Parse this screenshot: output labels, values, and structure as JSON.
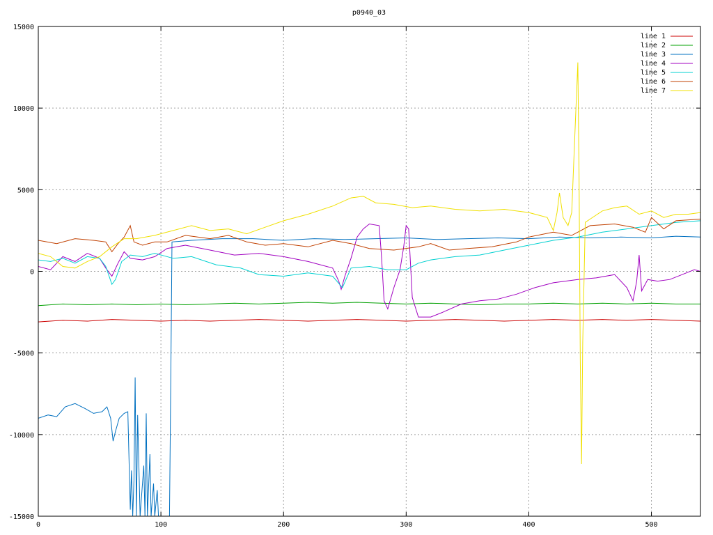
{
  "chart_data": {
    "type": "line",
    "title": "p0940_03",
    "xlabel": "",
    "ylabel": "",
    "xlim": [
      0,
      540
    ],
    "ylim": [
      -15000,
      15000
    ],
    "x_ticks": [
      0,
      100,
      200,
      300,
      400,
      500
    ],
    "y_ticks": [
      -15000,
      -10000,
      -5000,
      0,
      5000,
      10000,
      15000
    ],
    "grid": true,
    "legend_position": "top-right",
    "series": [
      {
        "name": "line 1",
        "color": "#cc0000",
        "points": [
          [
            0,
            -3100
          ],
          [
            20,
            -3000
          ],
          [
            40,
            -3050
          ],
          [
            60,
            -2950
          ],
          [
            80,
            -3000
          ],
          [
            100,
            -3050
          ],
          [
            120,
            -3000
          ],
          [
            140,
            -3050
          ],
          [
            160,
            -3000
          ],
          [
            180,
            -2950
          ],
          [
            200,
            -3000
          ],
          [
            220,
            -3050
          ],
          [
            240,
            -3000
          ],
          [
            260,
            -2950
          ],
          [
            280,
            -3000
          ],
          [
            300,
            -3050
          ],
          [
            320,
            -3000
          ],
          [
            340,
            -2950
          ],
          [
            360,
            -3000
          ],
          [
            380,
            -3050
          ],
          [
            400,
            -3000
          ],
          [
            420,
            -2950
          ],
          [
            440,
            -3000
          ],
          [
            460,
            -2950
          ],
          [
            480,
            -3000
          ],
          [
            500,
            -2950
          ],
          [
            520,
            -3000
          ],
          [
            540,
            -3050
          ]
        ]
      },
      {
        "name": "line 2",
        "color": "#00a000",
        "points": [
          [
            0,
            -2100
          ],
          [
            20,
            -2000
          ],
          [
            40,
            -2050
          ],
          [
            60,
            -2000
          ],
          [
            80,
            -2050
          ],
          [
            100,
            -2000
          ],
          [
            120,
            -2050
          ],
          [
            140,
            -2000
          ],
          [
            160,
            -1950
          ],
          [
            180,
            -2000
          ],
          [
            200,
            -1950
          ],
          [
            220,
            -1900
          ],
          [
            240,
            -1950
          ],
          [
            260,
            -1900
          ],
          [
            280,
            -1950
          ],
          [
            300,
            -2000
          ],
          [
            320,
            -1950
          ],
          [
            340,
            -2000
          ],
          [
            360,
            -2050
          ],
          [
            380,
            -2000
          ],
          [
            400,
            -2000
          ],
          [
            420,
            -1950
          ],
          [
            440,
            -2000
          ],
          [
            460,
            -1950
          ],
          [
            480,
            -2000
          ],
          [
            500,
            -1950
          ],
          [
            520,
            -2000
          ],
          [
            540,
            -2000
          ]
        ]
      },
      {
        "name": "line 3",
        "color": "#0070c0",
        "points": [
          [
            0,
            -9000
          ],
          [
            8,
            -8800
          ],
          [
            15,
            -8900
          ],
          [
            22,
            -8300
          ],
          [
            30,
            -8100
          ],
          [
            38,
            -8400
          ],
          [
            45,
            -8700
          ],
          [
            52,
            -8600
          ],
          [
            56,
            -8300
          ],
          [
            59,
            -9000
          ],
          [
            61,
            -10400
          ],
          [
            63,
            -9800
          ],
          [
            66,
            -9000
          ],
          [
            70,
            -8700
          ],
          [
            73,
            -8600
          ],
          [
            75,
            -14600
          ],
          [
            76,
            -12200
          ],
          [
            77,
            -15000
          ],
          [
            78,
            -12800
          ],
          [
            79,
            -6500
          ],
          [
            80,
            -15000
          ],
          [
            81,
            -8800
          ],
          [
            82,
            -11800
          ],
          [
            83,
            -15000
          ],
          [
            86,
            -11900
          ],
          [
            87,
            -15000
          ],
          [
            88,
            -8700
          ],
          [
            89,
            -15000
          ],
          [
            91,
            -11200
          ],
          [
            92,
            -15000
          ],
          [
            94,
            -13000
          ],
          [
            95,
            -15000
          ],
          [
            97,
            -13400
          ],
          [
            98,
            -15000
          ],
          [
            107,
            -15000
          ],
          [
            108,
            -7100
          ],
          [
            109,
            1800
          ],
          [
            125,
            1900
          ],
          [
            150,
            2000
          ],
          [
            175,
            2000
          ],
          [
            200,
            1900
          ],
          [
            225,
            2000
          ],
          [
            250,
            1950
          ],
          [
            275,
            2000
          ],
          [
            300,
            2050
          ],
          [
            325,
            1950
          ],
          [
            350,
            2000
          ],
          [
            375,
            2050
          ],
          [
            400,
            2000
          ],
          [
            425,
            2100
          ],
          [
            450,
            2050
          ],
          [
            475,
            2100
          ],
          [
            500,
            2050
          ],
          [
            520,
            2150
          ],
          [
            540,
            2100
          ]
        ]
      },
      {
        "name": "line 4",
        "color": "#a000c0",
        "points": [
          [
            0,
            300
          ],
          [
            10,
            100
          ],
          [
            20,
            900
          ],
          [
            30,
            600
          ],
          [
            40,
            1100
          ],
          [
            50,
            800
          ],
          [
            55,
            200
          ],
          [
            60,
            -300
          ],
          [
            65,
            500
          ],
          [
            70,
            1200
          ],
          [
            75,
            800
          ],
          [
            85,
            700
          ],
          [
            95,
            900
          ],
          [
            105,
            1400
          ],
          [
            120,
            1600
          ],
          [
            140,
            1300
          ],
          [
            160,
            1000
          ],
          [
            180,
            1100
          ],
          [
            200,
            900
          ],
          [
            220,
            600
          ],
          [
            240,
            200
          ],
          [
            245,
            -600
          ],
          [
            247,
            -1100
          ],
          [
            250,
            -300
          ],
          [
            255,
            800
          ],
          [
            260,
            2100
          ],
          [
            265,
            2600
          ],
          [
            270,
            2900
          ],
          [
            278,
            2800
          ],
          [
            280,
            800
          ],
          [
            282,
            -1800
          ],
          [
            285,
            -2300
          ],
          [
            290,
            -1000
          ],
          [
            295,
            100
          ],
          [
            298,
            1500
          ],
          [
            300,
            2800
          ],
          [
            302,
            2600
          ],
          [
            305,
            -1600
          ],
          [
            310,
            -2800
          ],
          [
            320,
            -2800
          ],
          [
            330,
            -2500
          ],
          [
            345,
            -2000
          ],
          [
            360,
            -1800
          ],
          [
            375,
            -1700
          ],
          [
            390,
            -1400
          ],
          [
            405,
            -1000
          ],
          [
            420,
            -700
          ],
          [
            440,
            -500
          ],
          [
            455,
            -400
          ],
          [
            470,
            -200
          ],
          [
            480,
            -1000
          ],
          [
            485,
            -1800
          ],
          [
            488,
            -600
          ],
          [
            490,
            1000
          ],
          [
            492,
            -1200
          ],
          [
            497,
            -500
          ],
          [
            505,
            -600
          ],
          [
            515,
            -500
          ],
          [
            525,
            -200
          ],
          [
            535,
            100
          ],
          [
            540,
            0
          ]
        ]
      },
      {
        "name": "line 5",
        "color": "#00d0d0",
        "points": [
          [
            0,
            700
          ],
          [
            10,
            600
          ],
          [
            20,
            800
          ],
          [
            30,
            500
          ],
          [
            40,
            900
          ],
          [
            50,
            800
          ],
          [
            55,
            300
          ],
          [
            60,
            -800
          ],
          [
            63,
            -500
          ],
          [
            68,
            600
          ],
          [
            75,
            1000
          ],
          [
            85,
            900
          ],
          [
            95,
            1100
          ],
          [
            110,
            800
          ],
          [
            125,
            900
          ],
          [
            145,
            400
          ],
          [
            165,
            200
          ],
          [
            180,
            -200
          ],
          [
            200,
            -300
          ],
          [
            220,
            -100
          ],
          [
            240,
            -300
          ],
          [
            248,
            -1000
          ],
          [
            255,
            200
          ],
          [
            270,
            300
          ],
          [
            285,
            100
          ],
          [
            300,
            100
          ],
          [
            310,
            500
          ],
          [
            320,
            700
          ],
          [
            340,
            900
          ],
          [
            360,
            1000
          ],
          [
            380,
            1300
          ],
          [
            400,
            1600
          ],
          [
            420,
            1900
          ],
          [
            440,
            2100
          ],
          [
            460,
            2400
          ],
          [
            480,
            2600
          ],
          [
            500,
            2800
          ],
          [
            520,
            3000
          ],
          [
            540,
            3100
          ]
        ]
      },
      {
        "name": "line 6",
        "color": "#c04000",
        "points": [
          [
            0,
            1900
          ],
          [
            15,
            1700
          ],
          [
            30,
            2000
          ],
          [
            45,
            1900
          ],
          [
            55,
            1800
          ],
          [
            60,
            1200
          ],
          [
            65,
            1700
          ],
          [
            70,
            2100
          ],
          [
            75,
            2800
          ],
          [
            78,
            1800
          ],
          [
            85,
            1600
          ],
          [
            95,
            1800
          ],
          [
            105,
            1800
          ],
          [
            120,
            2200
          ],
          [
            140,
            2000
          ],
          [
            155,
            2200
          ],
          [
            170,
            1800
          ],
          [
            185,
            1600
          ],
          [
            200,
            1700
          ],
          [
            220,
            1500
          ],
          [
            240,
            1900
          ],
          [
            255,
            1700
          ],
          [
            270,
            1400
          ],
          [
            290,
            1300
          ],
          [
            310,
            1500
          ],
          [
            320,
            1700
          ],
          [
            335,
            1300
          ],
          [
            350,
            1400
          ],
          [
            370,
            1500
          ],
          [
            390,
            1800
          ],
          [
            400,
            2100
          ],
          [
            420,
            2400
          ],
          [
            435,
            2200
          ],
          [
            450,
            2800
          ],
          [
            470,
            2900
          ],
          [
            485,
            2700
          ],
          [
            495,
            2400
          ],
          [
            500,
            3300
          ],
          [
            510,
            2600
          ],
          [
            520,
            3100
          ],
          [
            540,
            3200
          ]
        ]
      },
      {
        "name": "line 7",
        "color": "#f0e000",
        "points": [
          [
            0,
            1100
          ],
          [
            10,
            900
          ],
          [
            20,
            300
          ],
          [
            30,
            200
          ],
          [
            40,
            600
          ],
          [
            50,
            900
          ],
          [
            60,
            1500
          ],
          [
            70,
            2000
          ],
          [
            80,
            2000
          ],
          [
            95,
            2200
          ],
          [
            110,
            2500
          ],
          [
            125,
            2800
          ],
          [
            140,
            2500
          ],
          [
            155,
            2600
          ],
          [
            170,
            2300
          ],
          [
            185,
            2700
          ],
          [
            200,
            3100
          ],
          [
            220,
            3500
          ],
          [
            240,
            4000
          ],
          [
            255,
            4500
          ],
          [
            265,
            4600
          ],
          [
            275,
            4200
          ],
          [
            290,
            4100
          ],
          [
            305,
            3900
          ],
          [
            320,
            4000
          ],
          [
            340,
            3800
          ],
          [
            360,
            3700
          ],
          [
            380,
            3800
          ],
          [
            400,
            3600
          ],
          [
            415,
            3300
          ],
          [
            420,
            2500
          ],
          [
            423,
            3600
          ],
          [
            425,
            4800
          ],
          [
            428,
            3300
          ],
          [
            432,
            2800
          ],
          [
            435,
            3600
          ],
          [
            438,
            9200
          ],
          [
            440,
            12800
          ],
          [
            441,
            6000
          ],
          [
            442,
            -5500
          ],
          [
            443,
            -11800
          ],
          [
            444,
            -4400
          ],
          [
            446,
            3000
          ],
          [
            450,
            3200
          ],
          [
            460,
            3700
          ],
          [
            470,
            3900
          ],
          [
            480,
            4000
          ],
          [
            490,
            3500
          ],
          [
            500,
            3700
          ],
          [
            510,
            3300
          ],
          [
            520,
            3500
          ],
          [
            530,
            3500
          ],
          [
            540,
            3600
          ]
        ]
      }
    ]
  }
}
